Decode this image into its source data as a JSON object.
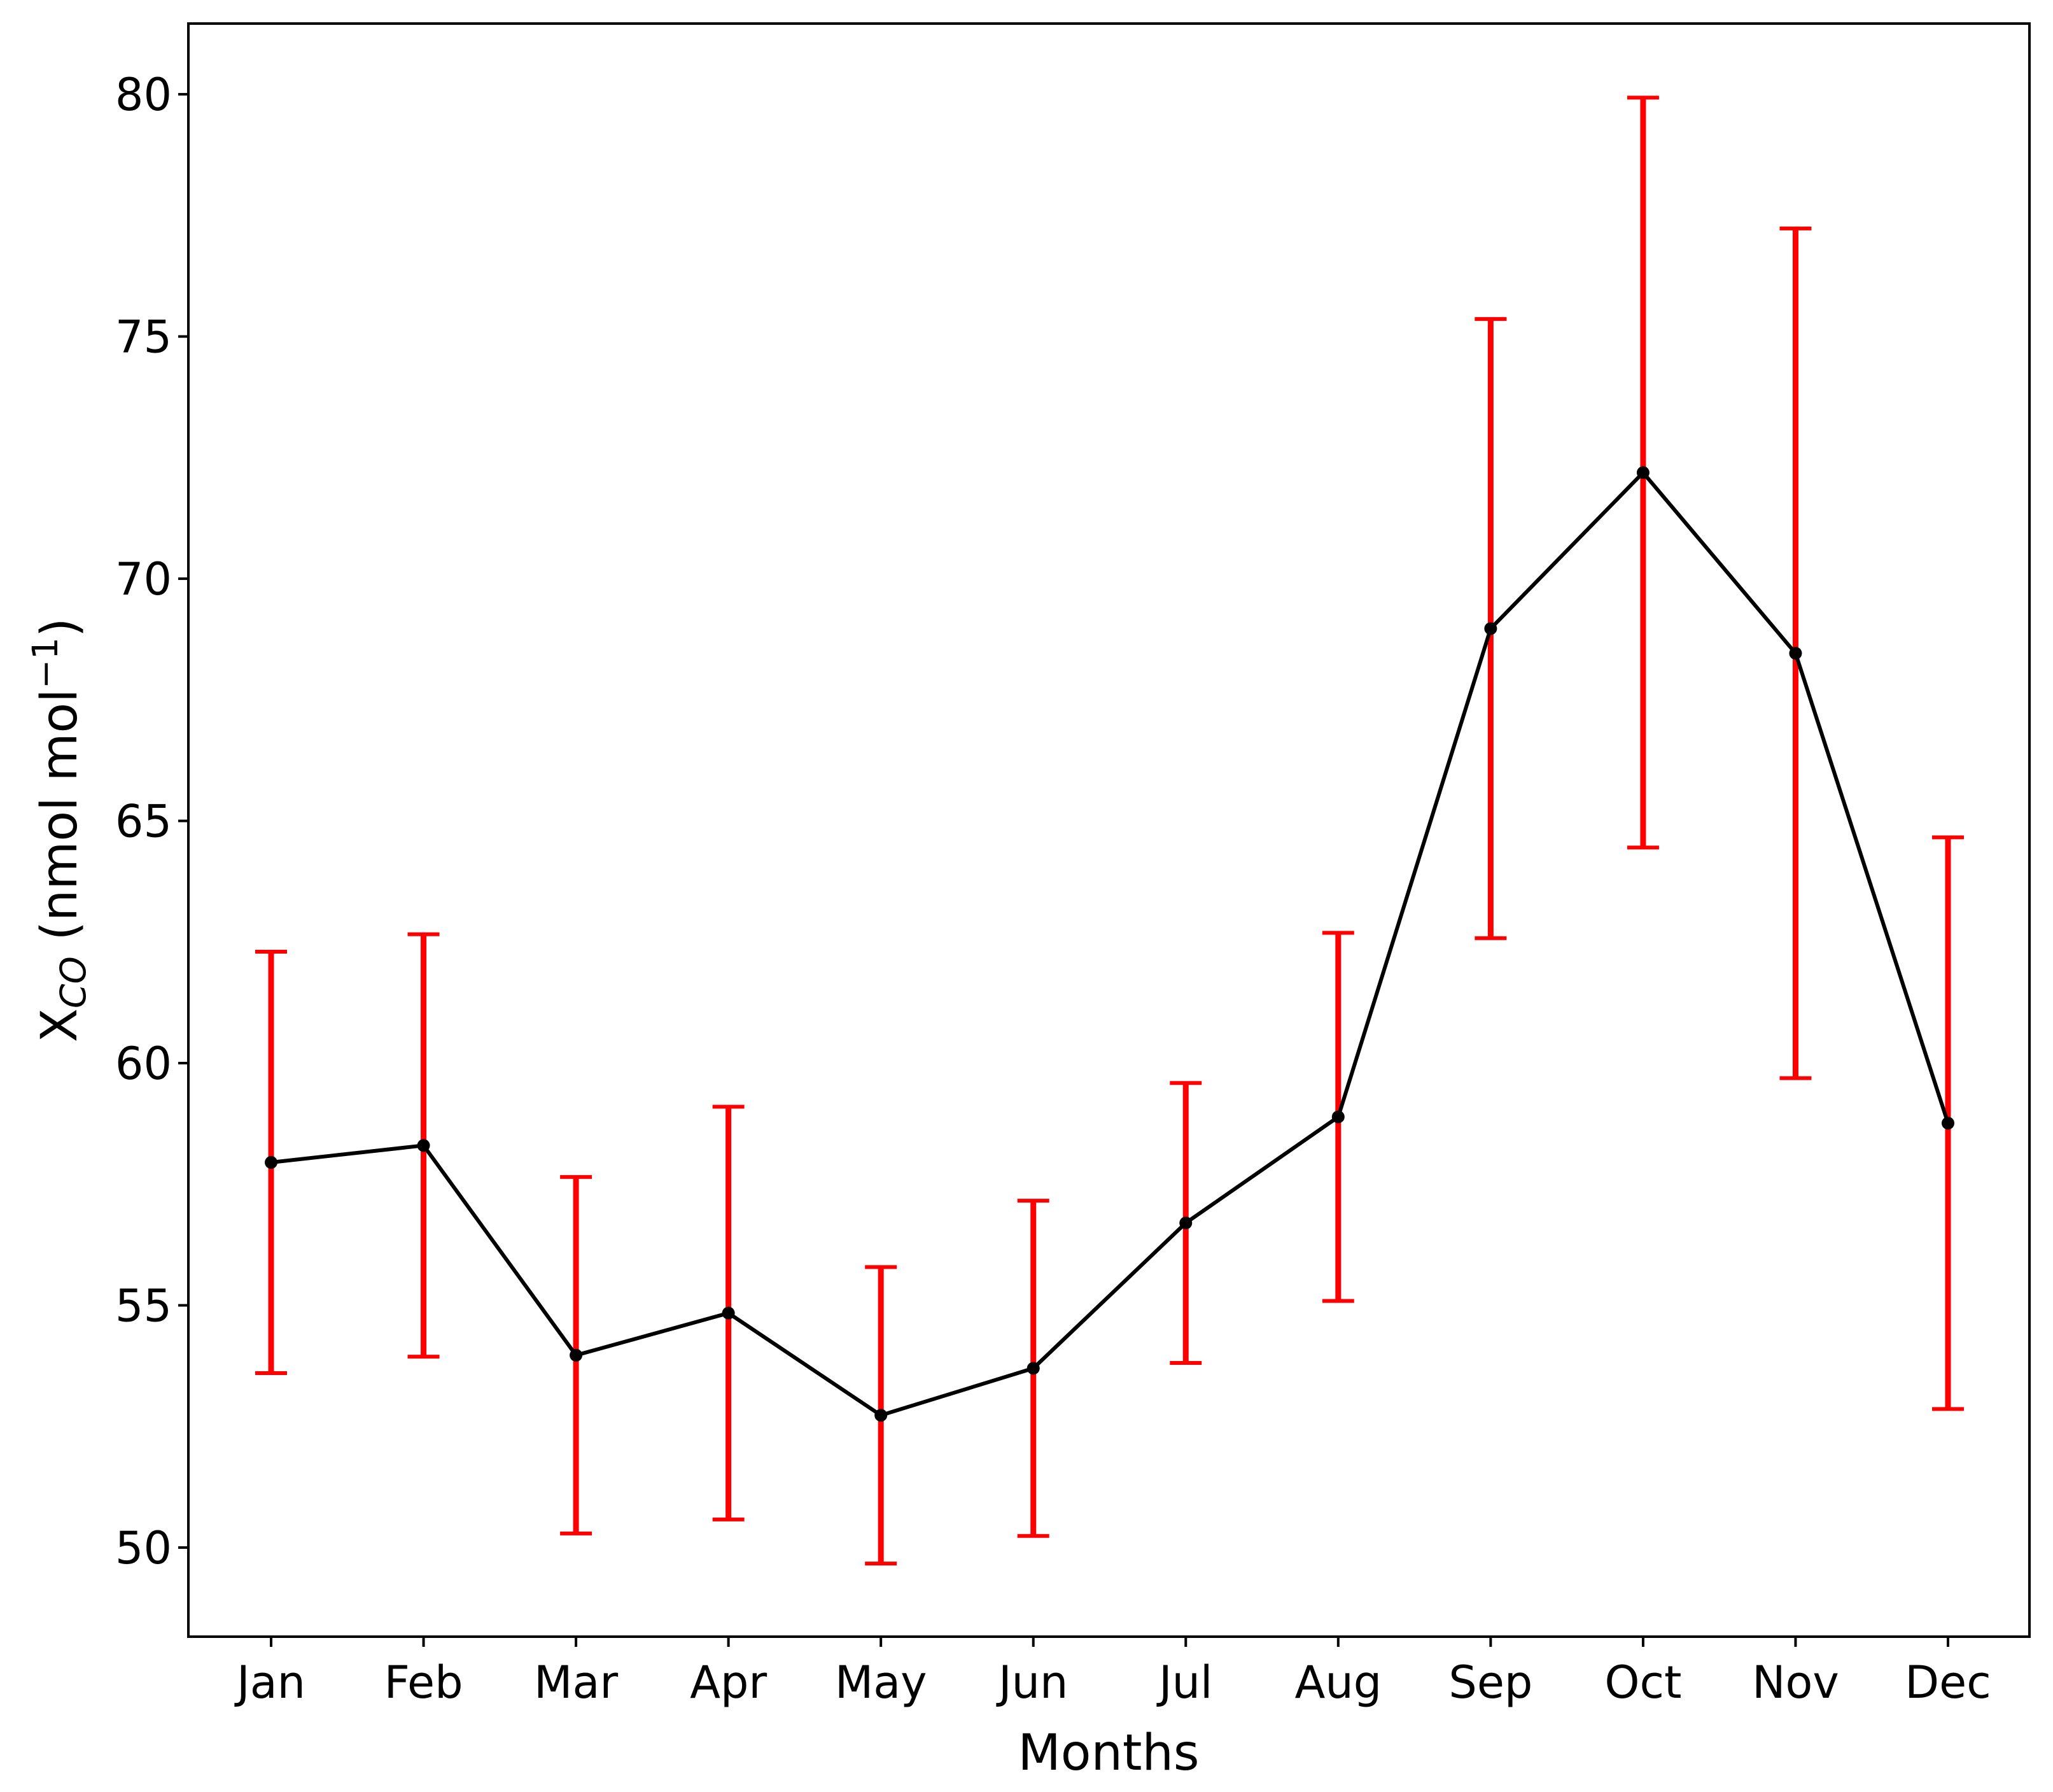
{
  "chart_data": {
    "type": "line",
    "xlabel": "Months",
    "ylabel": [
      "X",
      "CO",
      " (nmol mol",
      "−1",
      ")"
    ],
    "categories": [
      "Jan",
      "Feb",
      "Mar",
      "Apr",
      "May",
      "Jun",
      "Jul",
      "Aug",
      "Sep",
      "Oct",
      "Nov",
      "Dec"
    ],
    "series": [
      {
        "color": "#000000",
        "error_color": "#ff0000",
        "values": [
          57.95,
          58.3,
          53.97,
          54.84,
          52.73,
          53.7,
          56.7,
          58.89,
          68.97,
          72.19,
          68.46,
          58.76
        ],
        "errors": [
          4.35,
          4.36,
          3.68,
          4.26,
          3.06,
          3.46,
          2.89,
          3.8,
          6.39,
          7.74,
          8.77,
          5.9
        ]
      }
    ],
    "ylim": [
      48.16,
      81.46
    ],
    "yticks": [
      50,
      55,
      60,
      65,
      70,
      75,
      80
    ],
    "grid": false
  }
}
